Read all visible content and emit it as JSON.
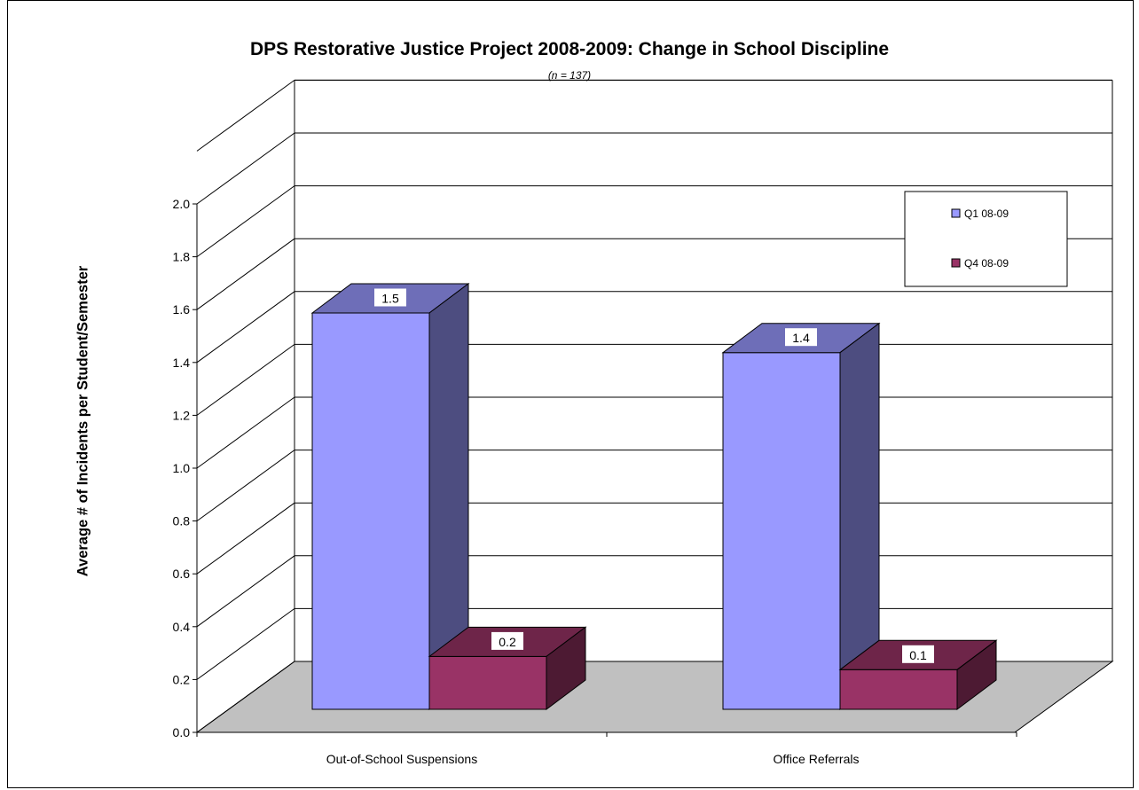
{
  "chart_data": {
    "type": "bar",
    "title": "DPS Restorative Justice Project 2008-2009: Change in School Discipline",
    "subtitle": "(n = 137)",
    "ylabel": "Average # of Incidents per Student/Semester",
    "xlabel": "",
    "ylim": [
      0,
      2.0
    ],
    "yticks": [
      "0.0",
      "0.2",
      "0.4",
      "0.6",
      "0.8",
      "1.0",
      "1.2",
      "1.4",
      "1.6",
      "1.8",
      "2.0"
    ],
    "categories": [
      "Out-of-School Suspensions",
      "Office Referrals"
    ],
    "series": [
      {
        "name": "Q1 08-09",
        "values": [
          1.5,
          1.35
        ],
        "labels": [
          "1.5",
          "1.4"
        ],
        "color": "#9999ff"
      },
      {
        "name": "Q4 08-09",
        "values": [
          0.2,
          0.15
        ],
        "labels": [
          "0.2",
          "0.1"
        ],
        "color": "#993366"
      }
    ],
    "grid": true,
    "style": "3d",
    "legend_position": "top-right"
  }
}
